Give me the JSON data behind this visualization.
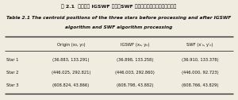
{
  "title_cn": "表 2.1  处理前后 IGSWF 算法、SWF 算法处理后三种星点的质心位置",
  "title_en_line1": "Table 2.1 The centroid positions of the three stars before processing and after IGSWF",
  "title_en_line2": "algorithm and SWF algorithm processing",
  "header_col0": "",
  "header_col1": "Origin (x₀, y₀)",
  "header_col2": "IGSWF (xₙ, yₙ)",
  "header_col3": "SWF (x′ₙ, y′ₙ)",
  "rows": [
    [
      "Star 1",
      "(36.883, 133.291)",
      "(36.898, 133.258)",
      "(36.910, 133.378)"
    ],
    [
      "Star 2",
      "(446.025, 292.821)",
      "(446.003, 292.860)",
      "(446.000, 92.723)"
    ],
    [
      "Star 3",
      "(608.824, 43.866)",
      "(608.798, 43.882)",
      "(608.766, 43.829)"
    ]
  ],
  "bg_color": "#f0ece0",
  "text_color": "#111111",
  "line_color": "#333333"
}
